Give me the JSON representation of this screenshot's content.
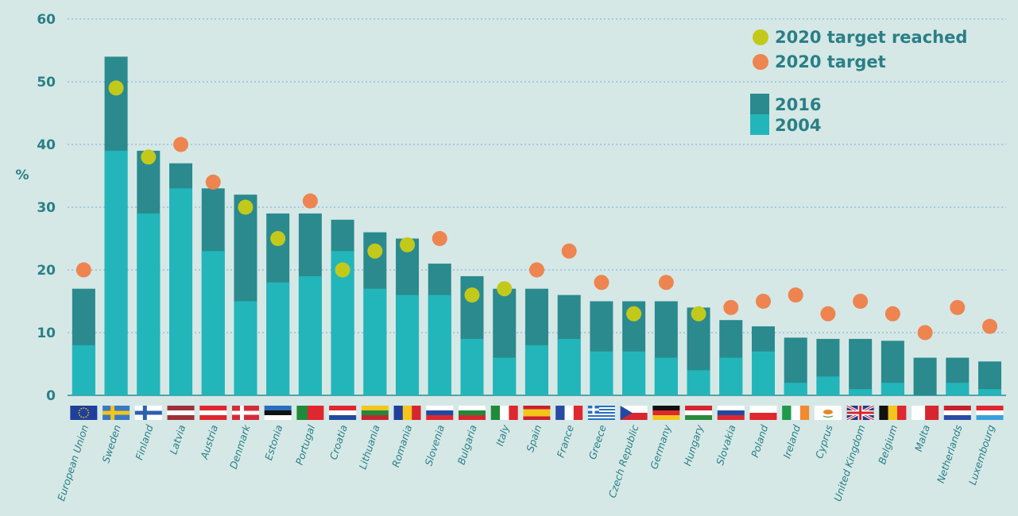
{
  "chart_data": {
    "type": "bar",
    "ylabel": "%",
    "ylim": [
      0,
      60
    ],
    "yticks": [
      "0",
      "10",
      "20",
      "30",
      "40",
      "50",
      "60"
    ],
    "grid": true,
    "legend_position": "top-right",
    "categories": [
      "European Union",
      "Sweden",
      "Finland",
      "Latvia",
      "Austria",
      "Denmark",
      "Estonia",
      "Portugal",
      "Croatia",
      "Lithuania",
      "Romania",
      "Slovenia",
      "Bulgaria",
      "Italy",
      "Spain",
      "France",
      "Greece",
      "Czech Republic",
      "Germany",
      "Hungary",
      "Slovakia",
      "Poland",
      "Ireland",
      "Cyprus",
      "United Kingdom",
      "Belgium",
      "Malta",
      "Netherlands",
      "Luxembourg"
    ],
    "series": [
      {
        "name": "2016",
        "color": "#2a8a8e",
        "values": [
          17,
          54,
          39,
          37,
          33,
          32,
          29,
          29,
          28,
          26,
          25,
          21,
          19,
          17,
          17,
          16,
          15,
          15,
          15,
          14,
          12,
          11,
          9.2,
          9,
          9,
          8.7,
          6,
          6,
          5.4
        ]
      },
      {
        "name": "2004",
        "color": "#22b6bb",
        "values": [
          8,
          39,
          29,
          33,
          23,
          15,
          18,
          19,
          23,
          17,
          16,
          16,
          9,
          6,
          8,
          9,
          7,
          7,
          6,
          4,
          6,
          7,
          2,
          3,
          1,
          2,
          0,
          2,
          1
        ]
      },
      {
        "name": "2020 target",
        "color": "#ee8450",
        "values": [
          20,
          49,
          38,
          40,
          34,
          30,
          25,
          31,
          20,
          23,
          24,
          25,
          16,
          17,
          20,
          23,
          18,
          13,
          18,
          13,
          14,
          15,
          16,
          13,
          15,
          13,
          10,
          14,
          11
        ]
      }
    ],
    "target_reached": [
      false,
      true,
      true,
      false,
      false,
      true,
      true,
      false,
      true,
      true,
      true,
      false,
      true,
      true,
      false,
      false,
      false,
      true,
      false,
      true,
      false,
      false,
      false,
      false,
      false,
      false,
      false,
      false,
      false
    ],
    "legend": {
      "reached_label": "2020 target reached",
      "reached_color": "#c3c91b",
      "target_label": "2020 target",
      "target_color": "#ee8450",
      "s2016_label": "2016",
      "s2004_label": "2004"
    },
    "flags": [
      {
        "kind": "eu"
      },
      {
        "kind": "nordic",
        "bg": "#3a78c4",
        "fg": "#f4c51a"
      },
      {
        "kind": "nordic",
        "bg": "#ffffff",
        "fg": "#2c5fb0"
      },
      {
        "kind": "h3",
        "c": [
          "#9e3039",
          "#ffffff",
          "#9e3039"
        ]
      },
      {
        "kind": "h3",
        "c": [
          "#e0262f",
          "#ffffff",
          "#e0262f"
        ]
      },
      {
        "kind": "nordic",
        "bg": "#d52b39",
        "fg": "#ffffff"
      },
      {
        "kind": "h3",
        "c": [
          "#2a6fbf",
          "#111111",
          "#ffffff"
        ]
      },
      {
        "kind": "v2",
        "c": [
          "#1f8a3a",
          "#e0262f"
        ],
        "split": 0.4
      },
      {
        "kind": "h3",
        "c": [
          "#e0262f",
          "#ffffff",
          "#1f4aa0"
        ]
      },
      {
        "kind": "h3",
        "c": [
          "#f4c51a",
          "#1f8a3a",
          "#c1272d"
        ]
      },
      {
        "kind": "v3",
        "c": [
          "#1f3f9a",
          "#f4c51a",
          "#d6262f"
        ]
      },
      {
        "kind": "h3",
        "c": [
          "#ffffff",
          "#1f4aa0",
          "#e0262f"
        ]
      },
      {
        "kind": "h3",
        "c": [
          "#ffffff",
          "#1f8a3a",
          "#d6262f"
        ]
      },
      {
        "kind": "v3",
        "c": [
          "#1f8a3a",
          "#ffffff",
          "#e0262f"
        ]
      },
      {
        "kind": "h3",
        "c": [
          "#c8202f",
          "#f4c51a",
          "#c8202f"
        ],
        "w": [
          1,
          2,
          1
        ]
      },
      {
        "kind": "v3",
        "c": [
          "#2a4aa6",
          "#ffffff",
          "#e0262f"
        ]
      },
      {
        "kind": "greece"
      },
      {
        "kind": "czech"
      },
      {
        "kind": "h3",
        "c": [
          "#111111",
          "#e0262f",
          "#f4c51a"
        ]
      },
      {
        "kind": "h3",
        "c": [
          "#d6262f",
          "#ffffff",
          "#2a8a3a"
        ]
      },
      {
        "kind": "h3",
        "c": [
          "#ffffff",
          "#1f4aa0",
          "#e0262f"
        ]
      },
      {
        "kind": "h2",
        "c": [
          "#ffffff",
          "#e0262f"
        ]
      },
      {
        "kind": "v3",
        "c": [
          "#1f9a4a",
          "#ffffff",
          "#f28a2e"
        ]
      },
      {
        "kind": "cyprus"
      },
      {
        "kind": "uk"
      },
      {
        "kind": "v3",
        "c": [
          "#111111",
          "#f4c51a",
          "#e0262f"
        ]
      },
      {
        "kind": "v2",
        "c": [
          "#ffffff",
          "#d6262f"
        ],
        "split": 0.5
      },
      {
        "kind": "h3",
        "c": [
          "#c8202f",
          "#ffffff",
          "#2a4aa6"
        ]
      },
      {
        "kind": "h3",
        "c": [
          "#e0262f",
          "#ffffff",
          "#3aa0dc"
        ]
      }
    ]
  }
}
